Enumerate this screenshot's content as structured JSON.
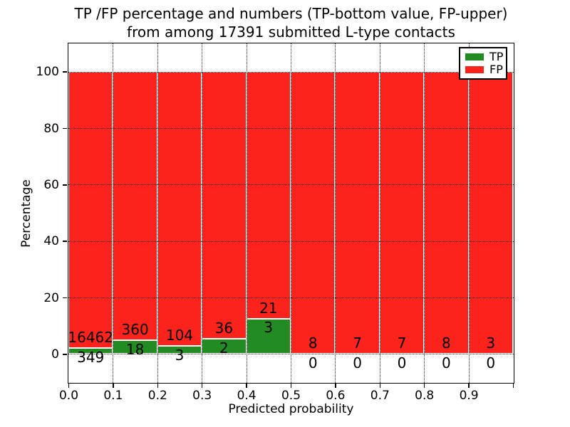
{
  "chart_data": {
    "type": "bar",
    "stacked": true,
    "title": "TP /FP percentage and numbers (TP-bottom value, FP-upper)\nfrom among 17391 submitted L-type contacts",
    "xlabel": "Predicted probability",
    "ylabel": "Percentage",
    "total_contacts": 17391,
    "xlim": [
      0.0,
      1.0
    ],
    "ylim": [
      -10,
      110
    ],
    "xtick_labels": [
      "0.0",
      "0.1",
      "0.2",
      "0.3",
      "0.4",
      "0.5",
      "0.6",
      "0.7",
      "0.8",
      "0.9"
    ],
    "ytick_values": [
      0,
      20,
      40,
      60,
      80,
      100
    ],
    "grid": "dotted",
    "bar_width": 0.1,
    "colors": {
      "tp": "#228c22",
      "fp": "#fb231b",
      "bar_edge": "#ffffff"
    },
    "legend": {
      "position": "upper-right",
      "entries": [
        {
          "label": "TP",
          "color": "#228c22"
        },
        {
          "label": "FP",
          "color": "#fb231b"
        }
      ]
    },
    "bins": [
      {
        "x0": 0.0,
        "x1": 0.1,
        "tp": 349,
        "fp": 16462,
        "tp_pct": 2.08,
        "fp_pct": 97.92
      },
      {
        "x0": 0.1,
        "x1": 0.2,
        "tp": 18,
        "fp": 360,
        "tp_pct": 4.76,
        "fp_pct": 95.24
      },
      {
        "x0": 0.2,
        "x1": 0.3,
        "tp": 3,
        "fp": 104,
        "tp_pct": 2.8,
        "fp_pct": 97.2
      },
      {
        "x0": 0.3,
        "x1": 0.4,
        "tp": 2,
        "fp": 36,
        "tp_pct": 5.26,
        "fp_pct": 94.74
      },
      {
        "x0": 0.4,
        "x1": 0.5,
        "tp": 3,
        "fp": 21,
        "tp_pct": 12.5,
        "fp_pct": 87.5
      },
      {
        "x0": 0.5,
        "x1": 0.6,
        "tp": 0,
        "fp": 8,
        "tp_pct": 0,
        "fp_pct": 100
      },
      {
        "x0": 0.6,
        "x1": 0.7,
        "tp": 0,
        "fp": 7,
        "tp_pct": 0,
        "fp_pct": 100
      },
      {
        "x0": 0.7,
        "x1": 0.8,
        "tp": 0,
        "fp": 7,
        "tp_pct": 0,
        "fp_pct": 100
      },
      {
        "x0": 0.8,
        "x1": 0.9,
        "tp": 0,
        "fp": 8,
        "tp_pct": 0,
        "fp_pct": 100
      },
      {
        "x0": 0.9,
        "x1": 1.0,
        "tp": 0,
        "fp": 3,
        "tp_pct": 0,
        "fp_pct": 100
      }
    ]
  }
}
